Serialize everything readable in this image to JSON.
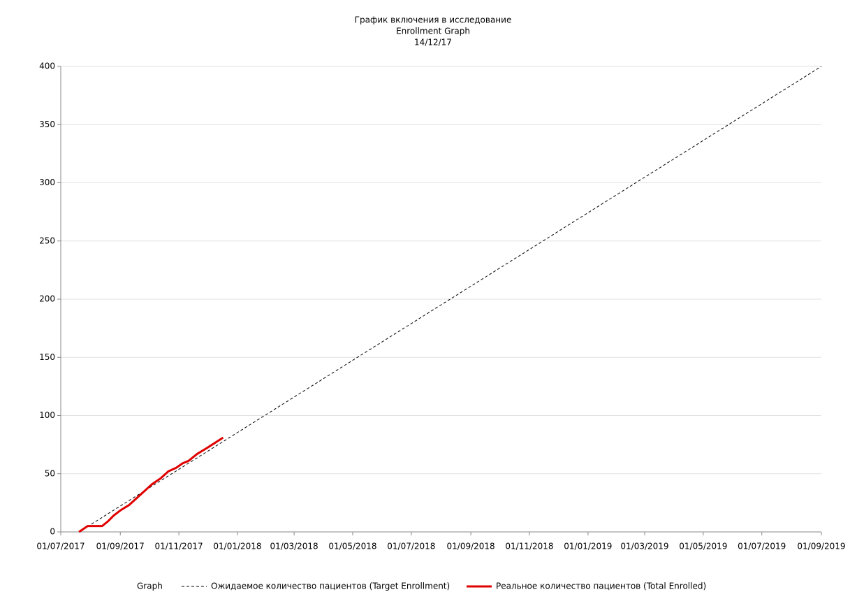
{
  "chart_data": {
    "type": "line",
    "title": "График включения в исследование",
    "subtitle": "Enrollment Graph",
    "date": "14/12/17",
    "xlim": [
      "01/07/2017",
      "01/09/2019"
    ],
    "xticks": [
      "01/07/2017",
      "01/09/2017",
      "01/11/2017",
      "01/01/2018",
      "01/03/2018",
      "01/05/2018",
      "01/07/2018",
      "01/09/2018",
      "01/11/2018",
      "01/01/2019",
      "01/03/2019",
      "01/05/2019",
      "01/07/2019",
      "01/09/2019"
    ],
    "ylim": [
      0,
      400
    ],
    "yticks": [
      0,
      50,
      100,
      150,
      200,
      250,
      300,
      350,
      400
    ],
    "grid": true,
    "legend_title": "Graph",
    "legend_position": "bottom",
    "series": [
      {
        "name": "Ожидаемое количество пациентов (Target Enrollment)",
        "color": "#000000",
        "style": "dashed",
        "width": 1,
        "x": [
          "20/07/2017",
          "01/09/2019"
        ],
        "values": [
          0,
          400
        ]
      },
      {
        "name": "Реальное количество пациентов (Total Enrolled)",
        "color": "#e00000",
        "style": "solid",
        "width": 3,
        "x": [
          "20/07/2017",
          "29/07/2017",
          "05/08/2017",
          "13/08/2017",
          "19/08/2017",
          "25/08/2017",
          "02/09/2017",
          "10/09/2017",
          "18/09/2017",
          "26/09/2017",
          "04/10/2017",
          "13/10/2017",
          "21/10/2017",
          "29/10/2017",
          "05/11/2017",
          "11/11/2017",
          "20/11/2017",
          "30/11/2017",
          "17/12/2017"
        ],
        "values": [
          0,
          5,
          5,
          5,
          9,
          14,
          19,
          23,
          29,
          35,
          41,
          46,
          52,
          55,
          59,
          61,
          67,
          72,
          81
        ]
      }
    ]
  }
}
